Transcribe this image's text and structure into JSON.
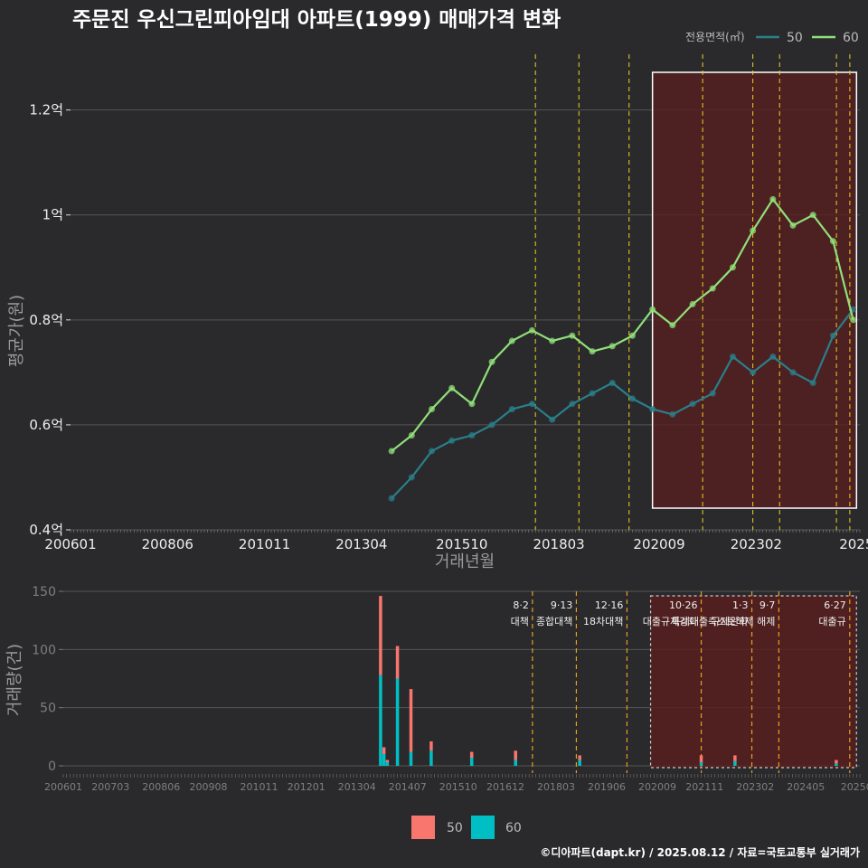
{
  "title": "주문진 우신그린피아임대 아파트(1999) 매매가격 변화",
  "footer": "©디아파트(dapt.kr) / 2025.08.12 / 자료=국토교통부 실거래가",
  "colors": {
    "background": "#2a2a2c",
    "price_50": "#2a7f8a",
    "price_60": "#90e07a",
    "volume_50": "#f8766d",
    "volume_60": "#00bfc4",
    "policy_line": "#f0d020",
    "policy_line_lower": "#e6a020",
    "highlight_fill": "#5a1e1e",
    "cancel_mark": "#e02020"
  },
  "chart_data": [
    {
      "type": "line",
      "title": "주문진 우신그린피아임대 아파트(1999) 매매가격 변화",
      "xlabel": "거래년월",
      "ylabel": "평균가(원)",
      "x_tick_labels": [
        "200601",
        "200806",
        "201011",
        "201304",
        "201510",
        "201803",
        "202009",
        "202302",
        "2025"
      ],
      "y_tick_labels": [
        "0.4억",
        "0.6억",
        "0.8억",
        "1억",
        "1.2억"
      ],
      "ylim": [
        0.4,
        1.32
      ],
      "y_unit": "억",
      "legend_title": "전용면적(㎡)",
      "legend_position": "top-right",
      "grid": true,
      "series": [
        {
          "name": "50",
          "x": [
            "2014-01",
            "2014-07",
            "2015-01",
            "2015-07",
            "2016-01",
            "2016-07",
            "2017-01",
            "2017-07",
            "2018-01",
            "2018-07",
            "2019-01",
            "2019-07",
            "2020-01",
            "2020-07",
            "2021-01",
            "2021-07",
            "2022-01",
            "2022-07",
            "2023-01",
            "2023-07",
            "2024-01",
            "2024-07",
            "2025-01",
            "2025-07"
          ],
          "values": [
            0.46,
            0.5,
            0.55,
            0.57,
            0.58,
            0.6,
            0.63,
            0.64,
            0.61,
            0.64,
            0.66,
            0.68,
            0.65,
            0.63,
            0.62,
            0.64,
            0.66,
            0.73,
            0.7,
            0.73,
            0.7,
            0.68,
            0.77,
            0.82
          ]
        },
        {
          "name": "60",
          "x": [
            "2014-01",
            "2014-07",
            "2015-01",
            "2015-07",
            "2016-01",
            "2016-07",
            "2017-01",
            "2017-07",
            "2018-01",
            "2018-07",
            "2019-01",
            "2019-07",
            "2020-01",
            "2020-07",
            "2021-01",
            "2021-07",
            "2022-01",
            "2022-07",
            "2023-01",
            "2023-07",
            "2024-01",
            "2024-07",
            "2025-01",
            "2025-07"
          ],
          "values": [
            0.55,
            0.58,
            0.63,
            0.67,
            0.64,
            0.72,
            0.76,
            0.78,
            0.76,
            0.77,
            0.74,
            0.75,
            0.77,
            0.82,
            0.79,
            0.83,
            0.86,
            0.9,
            0.97,
            1.03,
            0.98,
            1.0,
            0.95,
            0.8
          ]
        }
      ],
      "highlight_range": [
        "2020-07",
        "2025-08"
      ],
      "policy_dates": [
        "2017-08",
        "2018-09",
        "2019-12",
        "2021-10",
        "2023-01",
        "2023-09",
        "2025-02",
        "2025-06"
      ]
    },
    {
      "type": "bar",
      "xlabel": "",
      "ylabel": "거래량(건)",
      "x_tick_labels": [
        "200601",
        "200703",
        "200806",
        "200908",
        "201011",
        "201201",
        "201304",
        "201407",
        "201510",
        "201612",
        "201803",
        "201906",
        "202009",
        "202111",
        "202302",
        "202405",
        "20250"
      ],
      "ylim": [
        0,
        150
      ],
      "y_ticks": [
        0,
        50,
        100,
        150
      ],
      "grid": true,
      "legend_position": "bottom",
      "series": [
        {
          "name": "50",
          "x": [
            "2013-11",
            "2013-12",
            "2014-01",
            "2014-04",
            "2014-08",
            "2015-02",
            "2016-02",
            "2017-03",
            "2018-10",
            "2021-10",
            "2022-08",
            "2025-02"
          ],
          "values": [
            68,
            6,
            2,
            28,
            54,
            8,
            5,
            8,
            4,
            6,
            5,
            3
          ]
        },
        {
          "name": "60",
          "x": [
            "2013-11",
            "2013-12",
            "2014-01",
            "2014-04",
            "2014-08",
            "2015-02",
            "2016-02",
            "2017-03",
            "2018-10",
            "2021-10",
            "2022-08",
            "2025-02"
          ],
          "values": [
            78,
            10,
            3,
            75,
            12,
            13,
            7,
            5,
            5,
            3,
            4,
            2
          ]
        }
      ],
      "annotations": [
        {
          "date": "2017-08",
          "label": "8·2 대책"
        },
        {
          "date": "2018-09",
          "label": "9·13 종합대책"
        },
        {
          "date": "2019-12",
          "label": "12·16 18차대책"
        },
        {
          "date": "2021-10",
          "label": "10·26 대출규제강화"
        },
        {
          "date": "2023-01",
          "label": "1·3 규제완화"
        },
        {
          "date": "2023-09",
          "label": "9·7 특례대출축소토허제 해제"
        },
        {
          "date": "2025-06",
          "label": "6·27 대출규"
        }
      ]
    }
  ]
}
